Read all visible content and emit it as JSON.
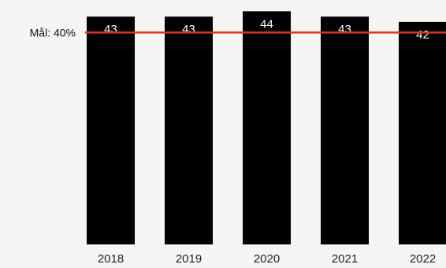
{
  "chart_data": {
    "type": "bar",
    "categories": [
      "2018",
      "2019",
      "2020",
      "2021",
      "2022"
    ],
    "values": [
      43,
      43,
      44,
      43,
      42
    ],
    "data_labels": [
      "43",
      "43",
      "44",
      "43",
      "42"
    ],
    "ylim": [
      0,
      44.5
    ],
    "grid": false,
    "bar_color": "#000000",
    "data_label_color": "#ffffff",
    "target": {
      "value": 40,
      "label": "Mål: 40%",
      "color": "#e0321c"
    }
  }
}
